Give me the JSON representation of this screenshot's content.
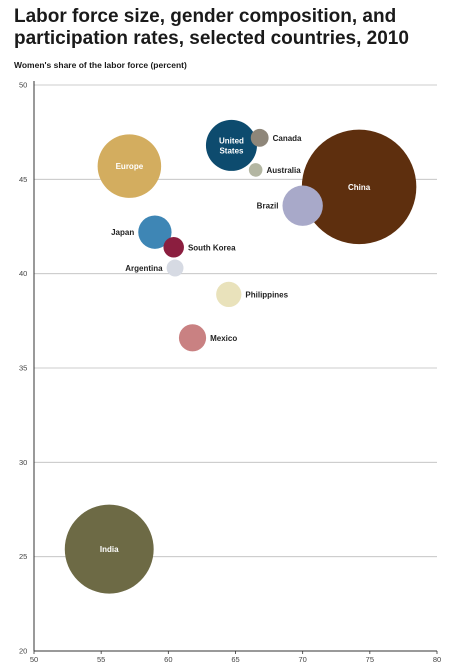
{
  "chart_data": {
    "type": "scatter",
    "title": "Labor force size, gender composition, and participation rates, selected countries, 2010",
    "ylabel": "Women's share of the labor force (percent)",
    "xlabel": "",
    "xlim": [
      50,
      80
    ],
    "ylim": [
      20,
      50
    ],
    "x_ticks": [
      50,
      55,
      60,
      65,
      70,
      75,
      80
    ],
    "y_ticks": [
      20,
      25,
      30,
      35,
      40,
      45,
      50
    ],
    "grid": "horizontal",
    "bubble_size_meaning": "labor force size",
    "points": [
      {
        "label": "China",
        "x": 74.2,
        "y": 44.6,
        "size": 780,
        "color": "#5e2f0e",
        "label_pos": "inside"
      },
      {
        "label": "India",
        "x": 55.6,
        "y": 25.4,
        "size": 470,
        "color": "#6d6a45",
        "label_pos": "inside"
      },
      {
        "label": "Europe",
        "x": 57.1,
        "y": 45.7,
        "size": 240,
        "color": "#d3ad5f",
        "label_pos": "inside"
      },
      {
        "label": "United States",
        "x": 64.7,
        "y": 46.8,
        "size": 155,
        "color": "#0d4b6e",
        "label_pos": "inside"
      },
      {
        "label": "Brazil",
        "x": 70.0,
        "y": 43.6,
        "size": 97,
        "color": "#a8a9c9",
        "label_pos": "left"
      },
      {
        "label": "Japan",
        "x": 59.0,
        "y": 42.2,
        "size": 66,
        "color": "#3e86b5",
        "label_pos": "left"
      },
      {
        "label": "Mexico",
        "x": 61.8,
        "y": 36.6,
        "size": 44,
        "color": "#c98182",
        "label_pos": "right"
      },
      {
        "label": "South Korea",
        "x": 60.4,
        "y": 41.4,
        "size": 25,
        "color": "#8b1e3f",
        "label_pos": "right"
      },
      {
        "label": "Philippines",
        "x": 64.5,
        "y": 38.9,
        "size": 38,
        "color": "#e9e2bb",
        "label_pos": "right"
      },
      {
        "label": "Canada",
        "x": 66.8,
        "y": 47.2,
        "size": 19,
        "color": "#8e8679",
        "label_pos": "right"
      },
      {
        "label": "Argentina",
        "x": 60.5,
        "y": 40.3,
        "size": 17,
        "color": "#d6dae3",
        "label_pos": "left"
      },
      {
        "label": "Australia",
        "x": 66.5,
        "y": 45.5,
        "size": 11,
        "color": "#b3b6a2",
        "label_pos": "right"
      }
    ]
  }
}
